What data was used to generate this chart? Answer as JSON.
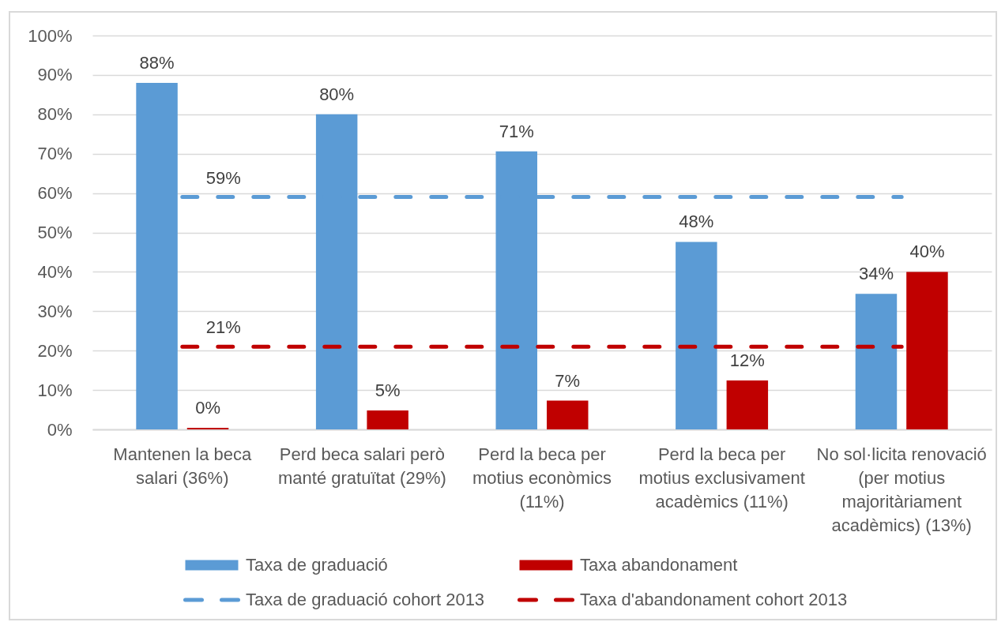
{
  "chart_data": {
    "type": "bar",
    "categories": [
      "Mantenen la beca salari (36%)",
      "Perd beca salari però manté gratuïtat (29%)",
      "Perd la beca per motius econòmics (11%)",
      "Perd la beca per motius exclusivament acadèmics (11%)",
      "No sol·licita renovació (per motius majoritàriament acadèmics) (13%)"
    ],
    "series": [
      {
        "name": "Taxa de graduació",
        "color": "#5b9bd5",
        "values": [
          88,
          80,
          70.6,
          47.6,
          34.4
        ],
        "value_labels": [
          "88%",
          "80%",
          "71%",
          "48%",
          "34%"
        ]
      },
      {
        "name": "Taxa abandonament",
        "color": "#c00000",
        "values": [
          0.4,
          4.8,
          7.3,
          12.4,
          40
        ],
        "value_labels": [
          "0%",
          "5%",
          "7%",
          "12%",
          "40%"
        ]
      },
      {
        "name": "Taxa de graduació cohort 2013",
        "type": "line",
        "line_style": "dashed",
        "color": "#5b9bd5",
        "values": [
          59,
          59,
          59,
          59,
          59
        ],
        "value_labels": [
          "59%",
          null,
          null,
          null,
          null
        ]
      },
      {
        "name": "Taxa d'abandonament cohort 2013",
        "type": "line",
        "line_style": "dashed",
        "color": "#c00000",
        "values": [
          21,
          21,
          21,
          21,
          21
        ],
        "value_labels": [
          "21%",
          null,
          null,
          null,
          null
        ]
      }
    ],
    "ylim": [
      0,
      100
    ],
    "yticks": [
      {
        "value": 0,
        "label": "0%"
      },
      {
        "value": 10,
        "label": "10%"
      },
      {
        "value": 20,
        "label": "20%"
      },
      {
        "value": 30,
        "label": "30%"
      },
      {
        "value": 40,
        "label": "40%"
      },
      {
        "value": 50,
        "label": "50%"
      },
      {
        "value": 60,
        "label": "60%"
      },
      {
        "value": 70,
        "label": "70%"
      },
      {
        "value": 80,
        "label": "80%"
      },
      {
        "value": 90,
        "label": "90%"
      },
      {
        "value": 100,
        "label": "100%"
      }
    ],
    "grid": "y",
    "legend": "bottom"
  }
}
